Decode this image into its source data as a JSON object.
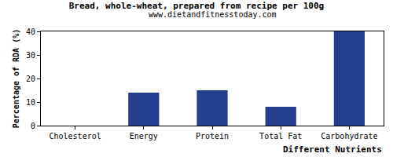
{
  "chart_data": {
    "type": "bar",
    "title": "Bread, whole-wheat, prepared from recipe per 100g",
    "subtitle": "www.dietandfitnesstoday.com",
    "x_label": "Different Nutrients",
    "y_label": "Percentage of RDA (%)",
    "categories": [
      "Cholesterol",
      "Energy",
      "Protein",
      "Total Fat",
      "Carbohydrate"
    ],
    "values": [
      0,
      14,
      15,
      8,
      40
    ],
    "color": "#233e8e",
    "ylim": [
      0,
      40
    ],
    "yticks": [
      0,
      10,
      20,
      30,
      40
    ],
    "grid": false
  }
}
